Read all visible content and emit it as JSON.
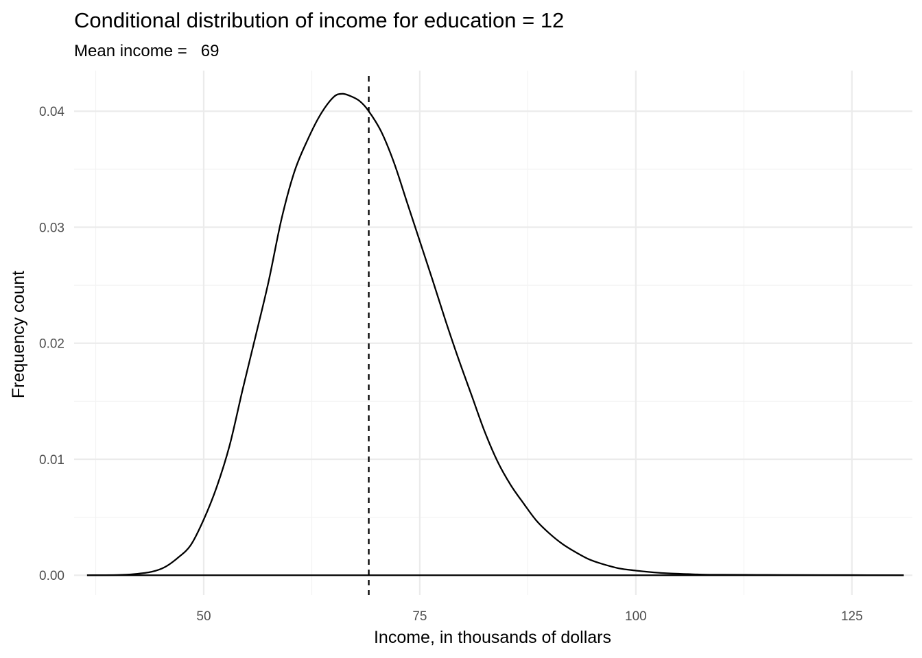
{
  "chart_data": {
    "type": "line",
    "title": "Conditional distribution of income for education = 12",
    "subtitle": "Mean income =   69",
    "xlabel": "Income, in thousands of dollars",
    "ylabel": "Frequency count",
    "xlim": [
      35,
      132
    ],
    "ylim": [
      -0.0017,
      0.0435
    ],
    "x_ticks": [
      50,
      75,
      100,
      125
    ],
    "x_tick_labels": [
      "50",
      "75",
      "100",
      "125"
    ],
    "x_minor_ticks": [
      37.5,
      62.5,
      87.5,
      112.5
    ],
    "y_ticks": [
      0,
      0.01,
      0.02,
      0.03,
      0.04
    ],
    "y_tick_labels": [
      "0.00",
      "0.01",
      "0.02",
      "0.03",
      "0.04"
    ],
    "y_minor_ticks": [
      0.005,
      0.015,
      0.025,
      0.035
    ],
    "grid": true,
    "legend": "none",
    "mean_line": {
      "x": 69.1,
      "style": "dashed"
    },
    "series": [
      {
        "x": [
          36.5,
          40,
          42,
          44,
          45.5,
          47,
          48.5,
          50,
          51.5,
          53,
          54.5,
          56,
          57.5,
          59,
          60.5,
          62,
          63.5,
          65,
          66,
          67,
          68,
          69,
          70.5,
          72,
          73.5,
          75,
          76.5,
          78,
          79.5,
          81,
          82.5,
          84,
          85.5,
          87,
          88.5,
          90,
          91.5,
          93,
          94.5,
          96,
          98,
          100,
          102,
          104,
          106,
          108,
          110,
          114,
          118,
          125,
          131
        ],
        "y": [
          0,
          2e-05,
          0.0001,
          0.0003,
          0.0007,
          0.0015,
          0.0026,
          0.0048,
          0.0076,
          0.0112,
          0.016,
          0.0206,
          0.0253,
          0.0307,
          0.0348,
          0.0375,
          0.0397,
          0.0412,
          0.0415,
          0.0413,
          0.0409,
          0.0401,
          0.0383,
          0.0356,
          0.0322,
          0.0288,
          0.0254,
          0.0219,
          0.0186,
          0.0155,
          0.0124,
          0.0098,
          0.0078,
          0.0062,
          0.0047,
          0.0036,
          0.0027,
          0.002,
          0.0014,
          0.001,
          0.0006,
          0.0004,
          0.00025,
          0.00015,
          0.0001,
          5e-05,
          4e-05,
          3e-05,
          2e-05,
          1e-05,
          0
        ]
      }
    ]
  }
}
